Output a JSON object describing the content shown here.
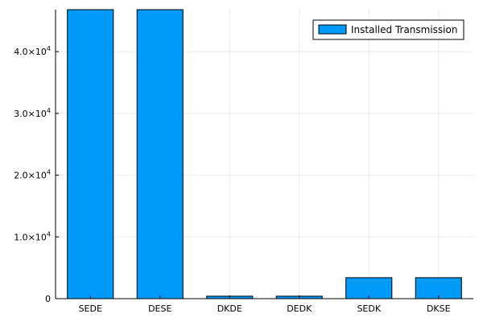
{
  "chart_data": {
    "type": "bar",
    "categories": [
      "SEDE",
      "DESE",
      "DKDE",
      "DEDK",
      "SEDK",
      "DKSE"
    ],
    "series": [
      {
        "name": "Installed Transmission",
        "values": [
          48000,
          48000,
          400,
          400,
          3400,
          3400
        ],
        "color": "#009AF9"
      }
    ],
    "ylim": [
      0,
      46800
    ],
    "yticks": [
      {
        "value": 0,
        "label": "0"
      },
      {
        "value": 10000,
        "mantissa": "1.0×10",
        "exp": "4"
      },
      {
        "value": 20000,
        "mantissa": "2.0×10",
        "exp": "4"
      },
      {
        "value": 30000,
        "mantissa": "3.0×10",
        "exp": "4"
      },
      {
        "value": 40000,
        "mantissa": "4.0×10",
        "exp": "4"
      }
    ],
    "grid": true,
    "legend_position": "top-right",
    "frame": "bottom-left axes only"
  }
}
